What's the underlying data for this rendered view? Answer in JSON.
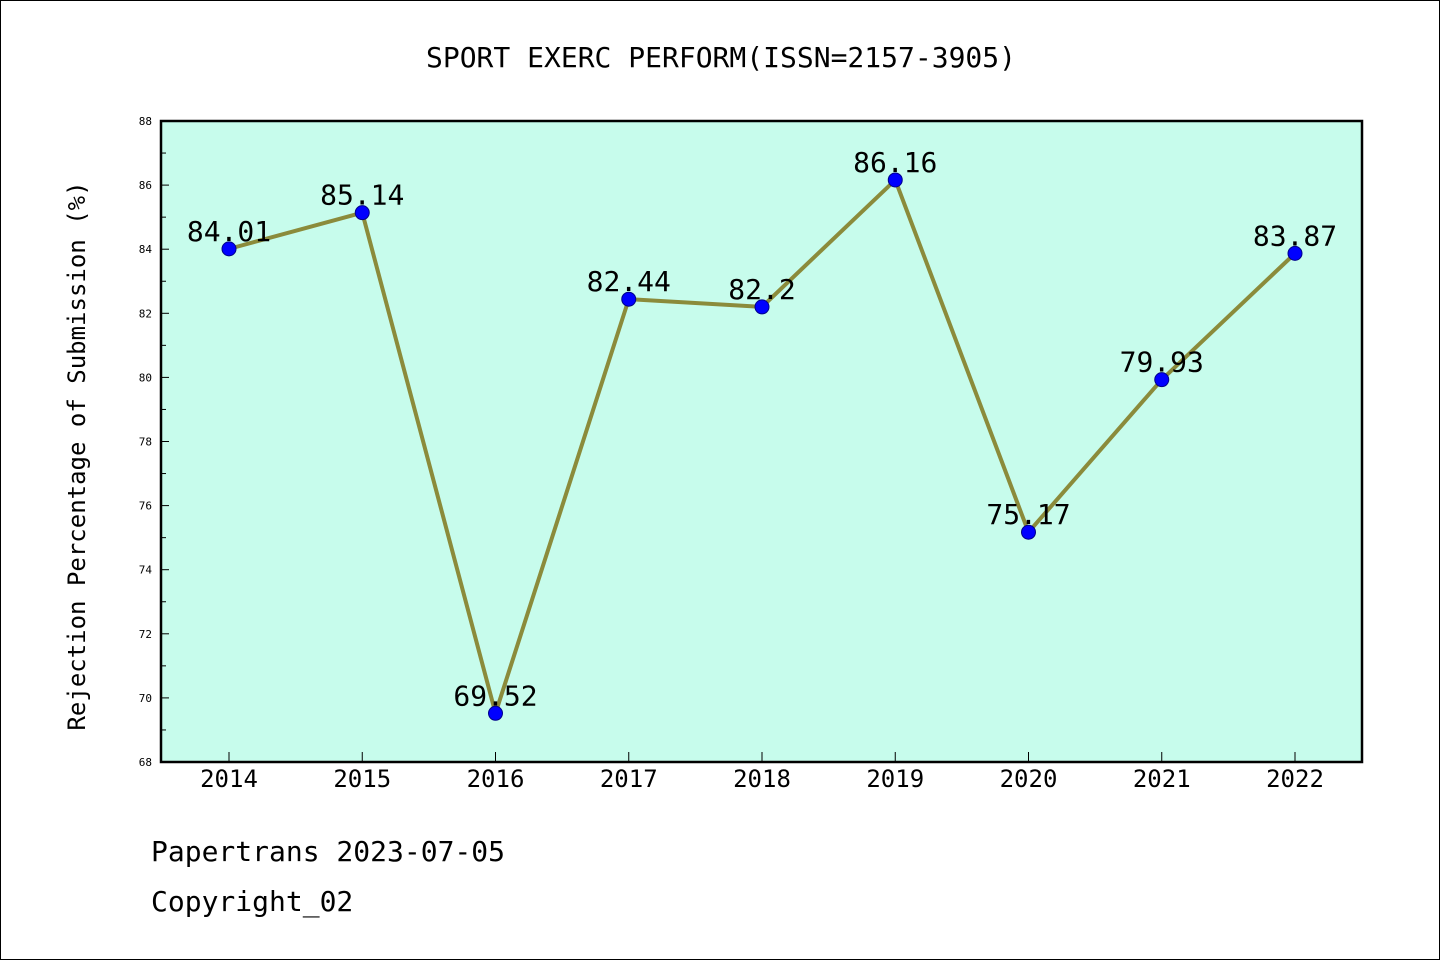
{
  "chart_data": {
    "type": "line",
    "title": "SPORT EXERC PERFORM(ISSN=2157-3905)",
    "xlabel": "",
    "ylabel": "Rejection Percentage of Submission (%)",
    "categories": [
      "2014",
      "2015",
      "2016",
      "2017",
      "2018",
      "2019",
      "2020",
      "2021",
      "2022"
    ],
    "series": [
      {
        "values": [
          84.01,
          85.14,
          69.52,
          82.44,
          82.2,
          86.16,
          75.17,
          79.93,
          83.87
        ],
        "labels": [
          "84.01",
          "85.14",
          "69.52",
          "82.44",
          "82.2",
          "86.16",
          "75.17",
          "79.93",
          "83.87"
        ]
      }
    ],
    "ylim": [
      68,
      88
    ],
    "yticks": [
      "68",
      "70",
      "72",
      "74",
      "76",
      "78",
      "80",
      "82",
      "84",
      "86",
      "88"
    ],
    "grid": false,
    "legend": "none",
    "colors": {
      "plot_background": "#c7fcec",
      "line": "#8b8b3b",
      "marker": "#0000ff",
      "marker_edge": "#00008b",
      "axis": "#000000"
    }
  },
  "footer": {
    "line1": "Papertrans 2023-07-05",
    "line2": "Copyright_02"
  }
}
